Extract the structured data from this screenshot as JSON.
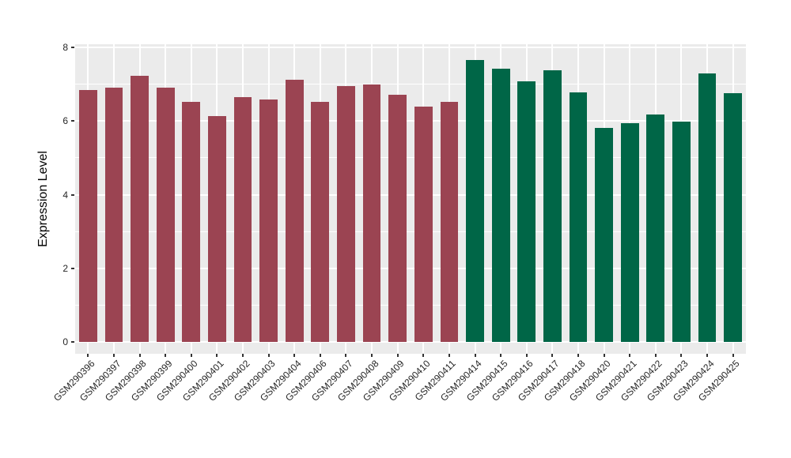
{
  "figure": {
    "background": "#ffffff",
    "panel_background": "#EBEBEB",
    "gridline_color": "#ffffff",
    "tick_color": "#333333",
    "axis_text_color": "#262626"
  },
  "chart_data": {
    "type": "bar",
    "title": "",
    "xlabel": "",
    "ylabel": "Expression Level",
    "ylim": [
      0,
      8
    ],
    "yticks": [
      0,
      2,
      4,
      6,
      8
    ],
    "yticks_minor": [
      1,
      3,
      5,
      7
    ],
    "grid": "horizontal major+minor white, vertical major at category centers",
    "legend": "none",
    "categories": [
      "GSM290396",
      "GSM290397",
      "GSM290398",
      "GSM290399",
      "GSM290400",
      "GSM290401",
      "GSM290402",
      "GSM290403",
      "GSM290404",
      "GSM290406",
      "GSM290407",
      "GSM290408",
      "GSM290409",
      "GSM290410",
      "GSM290411",
      "GSM290414",
      "GSM290415",
      "GSM290416",
      "GSM290417",
      "GSM290418",
      "GSM290420",
      "GSM290421",
      "GSM290422",
      "GSM290423",
      "GSM290424",
      "GSM290425"
    ],
    "values": [
      6.85,
      6.9,
      7.22,
      6.9,
      6.52,
      6.13,
      6.65,
      6.58,
      7.12,
      6.53,
      6.95,
      7.0,
      6.71,
      6.39,
      6.53,
      7.66,
      7.43,
      7.08,
      7.38,
      6.77,
      5.82,
      5.95,
      6.18,
      5.98,
      7.29,
      6.76
    ],
    "bar_colors": [
      "#9B4452",
      "#9B4452",
      "#9B4452",
      "#9B4452",
      "#9B4452",
      "#9B4452",
      "#9B4452",
      "#9B4452",
      "#9B4452",
      "#9B4452",
      "#9B4452",
      "#9B4452",
      "#9B4452",
      "#9B4452",
      "#9B4452",
      "#006647",
      "#006647",
      "#006647",
      "#006647",
      "#006647",
      "#006647",
      "#006647",
      "#006647",
      "#006647",
      "#006647",
      "#006647"
    ]
  }
}
